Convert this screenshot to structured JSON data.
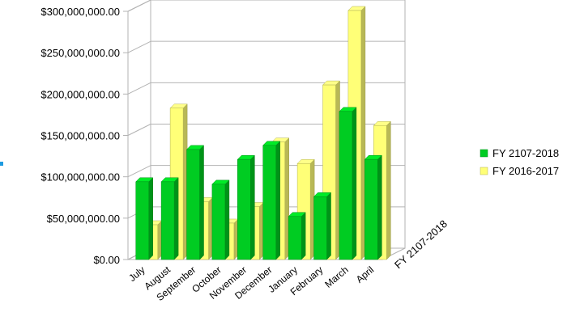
{
  "chart_data": {
    "type": "bar",
    "three_d": true,
    "categories": [
      "July",
      "August",
      "September",
      "October",
      "November",
      "December",
      "January",
      "February",
      "March",
      "April"
    ],
    "series": [
      {
        "name": "FY 2107-2018",
        "color": "#00cc22",
        "values": [
          94000000,
          94000000,
          133000000,
          91000000,
          121000000,
          138000000,
          52000000,
          76000000,
          179000000,
          121000000
        ]
      },
      {
        "name": "FY 2016-2017",
        "color": "#ffff77",
        "values": [
          42000000,
          183000000,
          70000000,
          44000000,
          64000000,
          142000000,
          116000000,
          211000000,
          301000000,
          162000000
        ]
      }
    ],
    "ylim": [
      0,
      300000000
    ],
    "y_ticks": [
      "$0.00",
      "$50,000,000.00",
      "$100,000,000.00",
      "$150,000,000.00",
      "$200,000,000.00",
      "$250,000,000.00",
      "$300,000,000.00"
    ],
    "depth_axis_label": "FY 2107-2018",
    "grid": true,
    "legend_position": "right"
  }
}
